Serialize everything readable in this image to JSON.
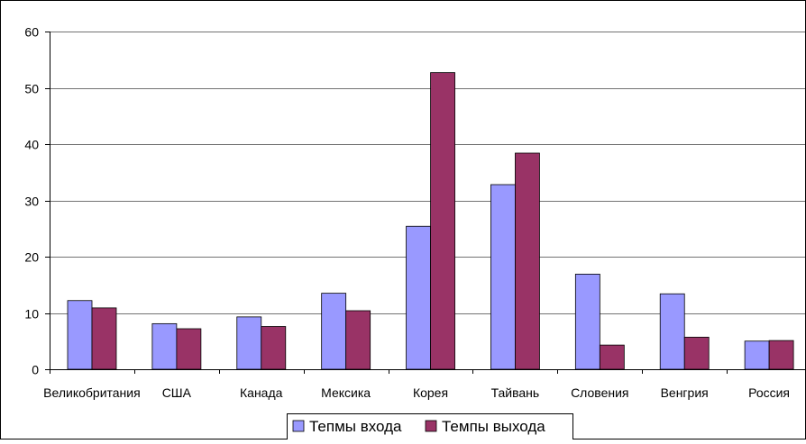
{
  "chart_data": {
    "type": "bar",
    "title": "",
    "xlabel": "",
    "ylabel": "",
    "categories": [
      "Великобритания",
      "США",
      "Канада",
      "Мексика",
      "Корея",
      "Тайвань",
      "Словения",
      "Венгрия",
      "Россия"
    ],
    "series": [
      {
        "name": "Тепмы входа",
        "color": "#9999ff",
        "values": [
          12.2,
          8.1,
          9.3,
          13.5,
          25.4,
          32.8,
          16.9,
          13.4,
          5.0
        ]
      },
      {
        "name": "Темпы выхода",
        "color": "#993366",
        "values": [
          10.9,
          7.2,
          7.6,
          10.4,
          52.7,
          38.4,
          4.3,
          5.7,
          5.1
        ]
      }
    ],
    "ylim": [
      0,
      60
    ],
    "yticks": [
      0,
      10,
      20,
      30,
      40,
      50,
      60
    ],
    "grid": true,
    "legend_position": "bottom"
  }
}
